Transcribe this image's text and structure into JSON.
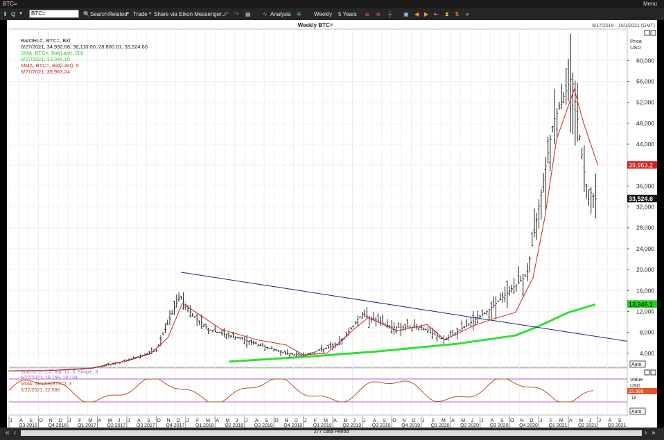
{
  "window": {
    "title": "BTC=",
    "menu_label": "Menu"
  },
  "toolbar": {
    "ric_value": "BTC=",
    "search_label": "Search",
    "related_label": "Related",
    "trade_label": "Trade",
    "share_label": "Share via Eikon Messenger...",
    "analysis_label": "Analysis",
    "interval_label": "Weekly",
    "range_label": "5 Years"
  },
  "chart": {
    "title": "Weekly BTC=",
    "date_range": "6/17/2016 - 10/1/2021 (GMT)",
    "price_axis_title": "Price",
    "price_axis_unit": "USD",
    "auto_label": "Auto",
    "last_price_label": "33,524.6",
    "mma_price_label": "39,963.2",
    "sma_price_label": "13,346.1",
    "osc_axis_title": "Value",
    "osc_axis_unit": "USD",
    "osc_value_label": "22.588",
    "osc_value_label2": "18",
    "data_period": "277 Data Period",
    "legend": {
      "l1": "BarOHLC, BTC=, Bid",
      "l2": "6/27/2021, 34,932.68, 36,110.00, 28,800.01, 33,524.60",
      "l3": "SMA, BTC=, Bid(Last), 200",
      "l4": "6/27/2021, 13,346.10",
      "l5": "MMA, BTC=, Bid(Last), 5",
      "l6": "6/27/2021, 39,963.24"
    },
    "osc_legend": {
      "l1": "StochS, BTC=, Bid, 12, 3, Simple, 3",
      "l2": "6/27/2021, 18.766, 19.734",
      "l3": "MMA, StochS(BTC=), 3",
      "l4": "6/27/2021, 22.588"
    },
    "colors": {
      "ohlc": "#222222",
      "sma": "#33dd33",
      "mma": "#cc2222",
      "trend": "#1a237e",
      "stoch": "#b8511c",
      "osc_band": "#b060d0"
    }
  },
  "chart_data": {
    "type": "bar",
    "title": "Weekly BTC=",
    "ylabel": "Price USD",
    "ylim": [
      0,
      66000
    ],
    "yticks": [
      4000,
      8000,
      12000,
      16000,
      20000,
      24000,
      28000,
      32000,
      36000,
      40000,
      44000,
      48000,
      52000,
      56000,
      60000
    ],
    "ytick_labels": [
      "4,000",
      "8,000",
      "12,000",
      "16,000",
      "20,000",
      "24,000",
      "28,000",
      "32,000",
      "36,000",
      "40,000",
      "44,000",
      "48,000",
      "52,000",
      "56,000",
      "60,000"
    ],
    "month_labels": [
      "J",
      "A",
      "S",
      "O",
      "N",
      "D",
      "J",
      "F",
      "M",
      "A",
      "M",
      "J",
      "J",
      "A",
      "S",
      "O",
      "N",
      "D",
      "J",
      "F",
      "M",
      "A",
      "M",
      "J",
      "J",
      "A",
      "S",
      "O",
      "N",
      "D",
      "J",
      "F",
      "M",
      "A",
      "M",
      "J",
      "J",
      "A",
      "S",
      "O",
      "N",
      "D",
      "J",
      "F",
      "M",
      "A",
      "M",
      "J",
      "J",
      "A",
      "S",
      "O",
      "N",
      "D",
      "J",
      "F",
      "M",
      "A",
      "M",
      "J",
      "J",
      "A",
      "S"
    ],
    "quarter_labels": [
      "Q3 2016",
      "Q4 2016",
      "Q1 2017",
      "Q2 2017",
      "Q3 2017",
      "Q4 2017",
      "Q1 2018",
      "Q2 2018",
      "Q3 2018",
      "Q4 2018",
      "Q1 2019",
      "Q2 2019",
      "Q3 2019",
      "Q4 2019",
      "Q1 2020",
      "Q2 2020",
      "Q3 2020",
      "Q4 2020",
      "Q1 2021",
      "Q2 2021",
      "Q3 2021"
    ],
    "series": [
      {
        "name": "SMA 200",
        "values": [
          [
            2018.37,
            2400
          ],
          [
            2019.0,
            3300
          ],
          [
            2019.6,
            4300
          ],
          [
            2020.3,
            5800
          ],
          [
            2020.8,
            7400
          ],
          [
            2021.0,
            9200
          ],
          [
            2021.25,
            11800
          ],
          [
            2021.48,
            13346
          ]
        ]
      },
      {
        "name": "MMA 5",
        "values": [
          [
            2016.5,
            650
          ],
          [
            2016.9,
            780
          ],
          [
            2017.2,
            1150
          ],
          [
            2017.5,
            2500
          ],
          [
            2017.7,
            3900
          ],
          [
            2017.85,
            7000
          ],
          [
            2017.97,
            13500
          ],
          [
            2018.05,
            12400
          ],
          [
            2018.3,
            8600
          ],
          [
            2018.6,
            6600
          ],
          [
            2018.85,
            5600
          ],
          [
            2019.0,
            3700
          ],
          [
            2019.2,
            4000
          ],
          [
            2019.45,
            9000
          ],
          [
            2019.55,
            10800
          ],
          [
            2019.8,
            8300
          ],
          [
            2020.05,
            9500
          ],
          [
            2020.2,
            6600
          ],
          [
            2020.45,
            9300
          ],
          [
            2020.6,
            10500
          ],
          [
            2020.8,
            11800
          ],
          [
            2020.95,
            18500
          ],
          [
            2021.05,
            30000
          ],
          [
            2021.15,
            45000
          ],
          [
            2021.3,
            54500
          ],
          [
            2021.38,
            48000
          ],
          [
            2021.5,
            39963
          ]
        ]
      },
      {
        "name": "Trendline",
        "values": [
          [
            2017.96,
            19500
          ],
          [
            2021.75,
            6300
          ]
        ]
      },
      {
        "name": "OHLC close",
        "values": [
          [
            2016.5,
            600
          ],
          [
            2016.9,
            750
          ],
          [
            2017.2,
            1100
          ],
          [
            2017.5,
            2600
          ],
          [
            2017.75,
            4500
          ],
          [
            2017.95,
            15000
          ],
          [
            2018.05,
            11500
          ],
          [
            2018.2,
            8500
          ],
          [
            2018.5,
            6500
          ],
          [
            2018.85,
            4000
          ],
          [
            2019.0,
            3600
          ],
          [
            2019.3,
            5700
          ],
          [
            2019.5,
            11500
          ],
          [
            2019.75,
            9000
          ],
          [
            2020.0,
            9000
          ],
          [
            2020.2,
            6500
          ],
          [
            2020.55,
            11800
          ],
          [
            2020.9,
            19000
          ],
          [
            2021.12,
            48000
          ],
          [
            2021.28,
            57000
          ],
          [
            2021.4,
            36000
          ],
          [
            2021.48,
            33524.6
          ]
        ]
      }
    ]
  }
}
